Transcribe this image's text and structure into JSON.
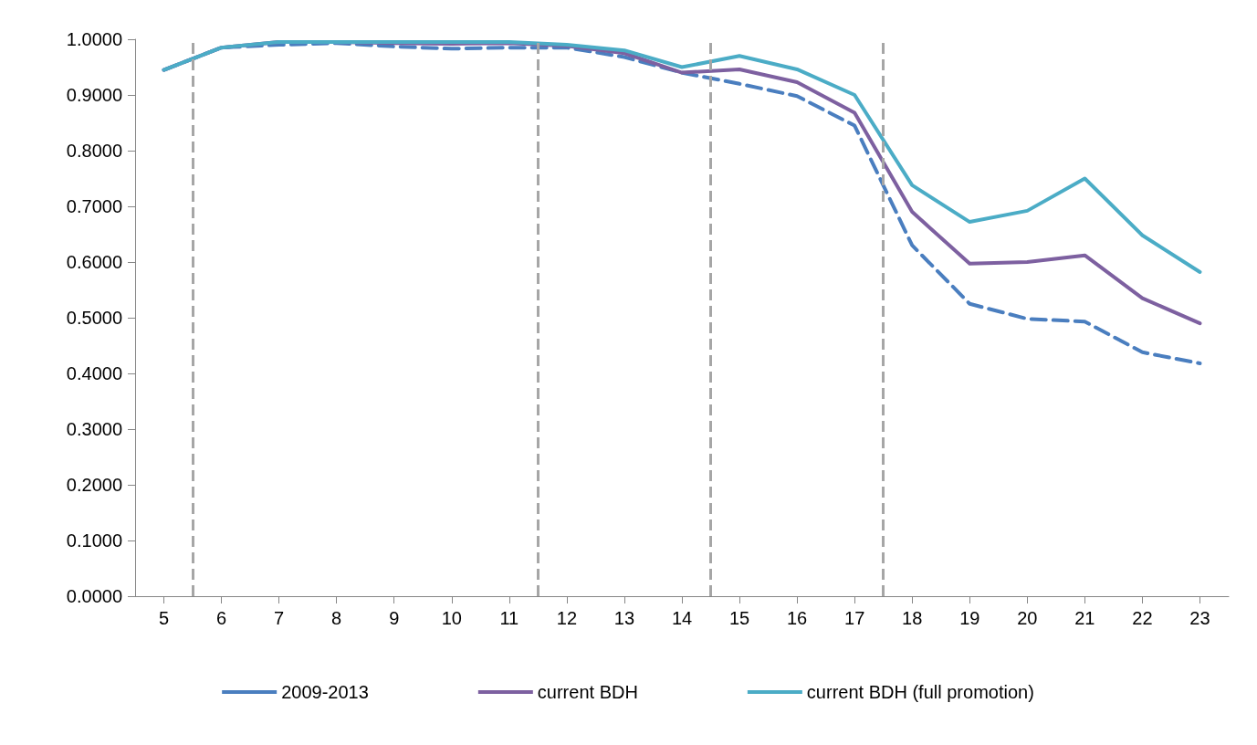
{
  "chart_data": {
    "type": "line",
    "x": [
      5,
      6,
      7,
      8,
      9,
      10,
      11,
      12,
      13,
      14,
      15,
      16,
      17,
      18,
      19,
      20,
      21,
      22,
      23
    ],
    "xlim": [
      4.5,
      23.5
    ],
    "xticks": [
      5,
      6,
      7,
      8,
      9,
      10,
      11,
      12,
      13,
      14,
      15,
      16,
      17,
      18,
      19,
      20,
      21,
      22,
      23
    ],
    "ylim": [
      0,
      1
    ],
    "yticks": [
      {
        "value": 0,
        "label": "0.0000"
      },
      {
        "value": 0.1,
        "label": "0.1000"
      },
      {
        "value": 0.2,
        "label": "0.2000"
      },
      {
        "value": 0.3,
        "label": "0.3000"
      },
      {
        "value": 0.4,
        "label": "0.4000"
      },
      {
        "value": 0.5,
        "label": "0.5000"
      },
      {
        "value": 0.6,
        "label": "0.6000"
      },
      {
        "value": 0.7,
        "label": "0.7000"
      },
      {
        "value": 0.8,
        "label": "0.8000"
      },
      {
        "value": 0.9,
        "label": "0.9000"
      },
      {
        "value": 1,
        "label": "1.0000"
      }
    ],
    "grid": false,
    "legend": "bottom",
    "marker": "none",
    "series": [
      {
        "name": "2009-2013",
        "color": "#4a7ebf",
        "line_style": "dashed",
        "values": [
          0.945,
          0.985,
          0.99,
          0.993,
          0.987,
          0.983,
          0.985,
          0.985,
          0.968,
          0.94,
          0.92,
          0.898,
          0.845,
          0.63,
          0.525,
          0.498,
          0.493,
          0.438,
          0.418
        ]
      },
      {
        "name": "current BDH",
        "color": "#7d60a0",
        "line_style": "solid",
        "values": [
          0.945,
          0.985,
          0.995,
          0.995,
          0.993,
          0.992,
          0.993,
          0.988,
          0.975,
          0.94,
          0.946,
          0.923,
          0.868,
          0.69,
          0.597,
          0.6,
          0.612,
          0.535,
          0.49
        ]
      },
      {
        "name": "current BDH (full promotion)",
        "color": "#4bacc6",
        "line_style": "solid",
        "values": [
          0.945,
          0.985,
          0.995,
          0.995,
          0.995,
          0.995,
          0.995,
          0.99,
          0.98,
          0.95,
          0.97,
          0.946,
          0.9,
          0.738,
          0.672,
          0.692,
          0.75,
          0.648,
          0.582
        ]
      }
    ],
    "ref_lines": [
      {
        "axis": "x",
        "value": 5.5,
        "color": "#a6a6a6",
        "line_style": "dashed"
      },
      {
        "axis": "x",
        "value": 11.5,
        "color": "#a6a6a6",
        "line_style": "dashed"
      },
      {
        "axis": "x",
        "value": 14.5,
        "color": "#a6a6a6",
        "line_style": "dashed"
      },
      {
        "axis": "x",
        "value": 17.5,
        "color": "#a6a6a6",
        "line_style": "dashed"
      }
    ]
  }
}
